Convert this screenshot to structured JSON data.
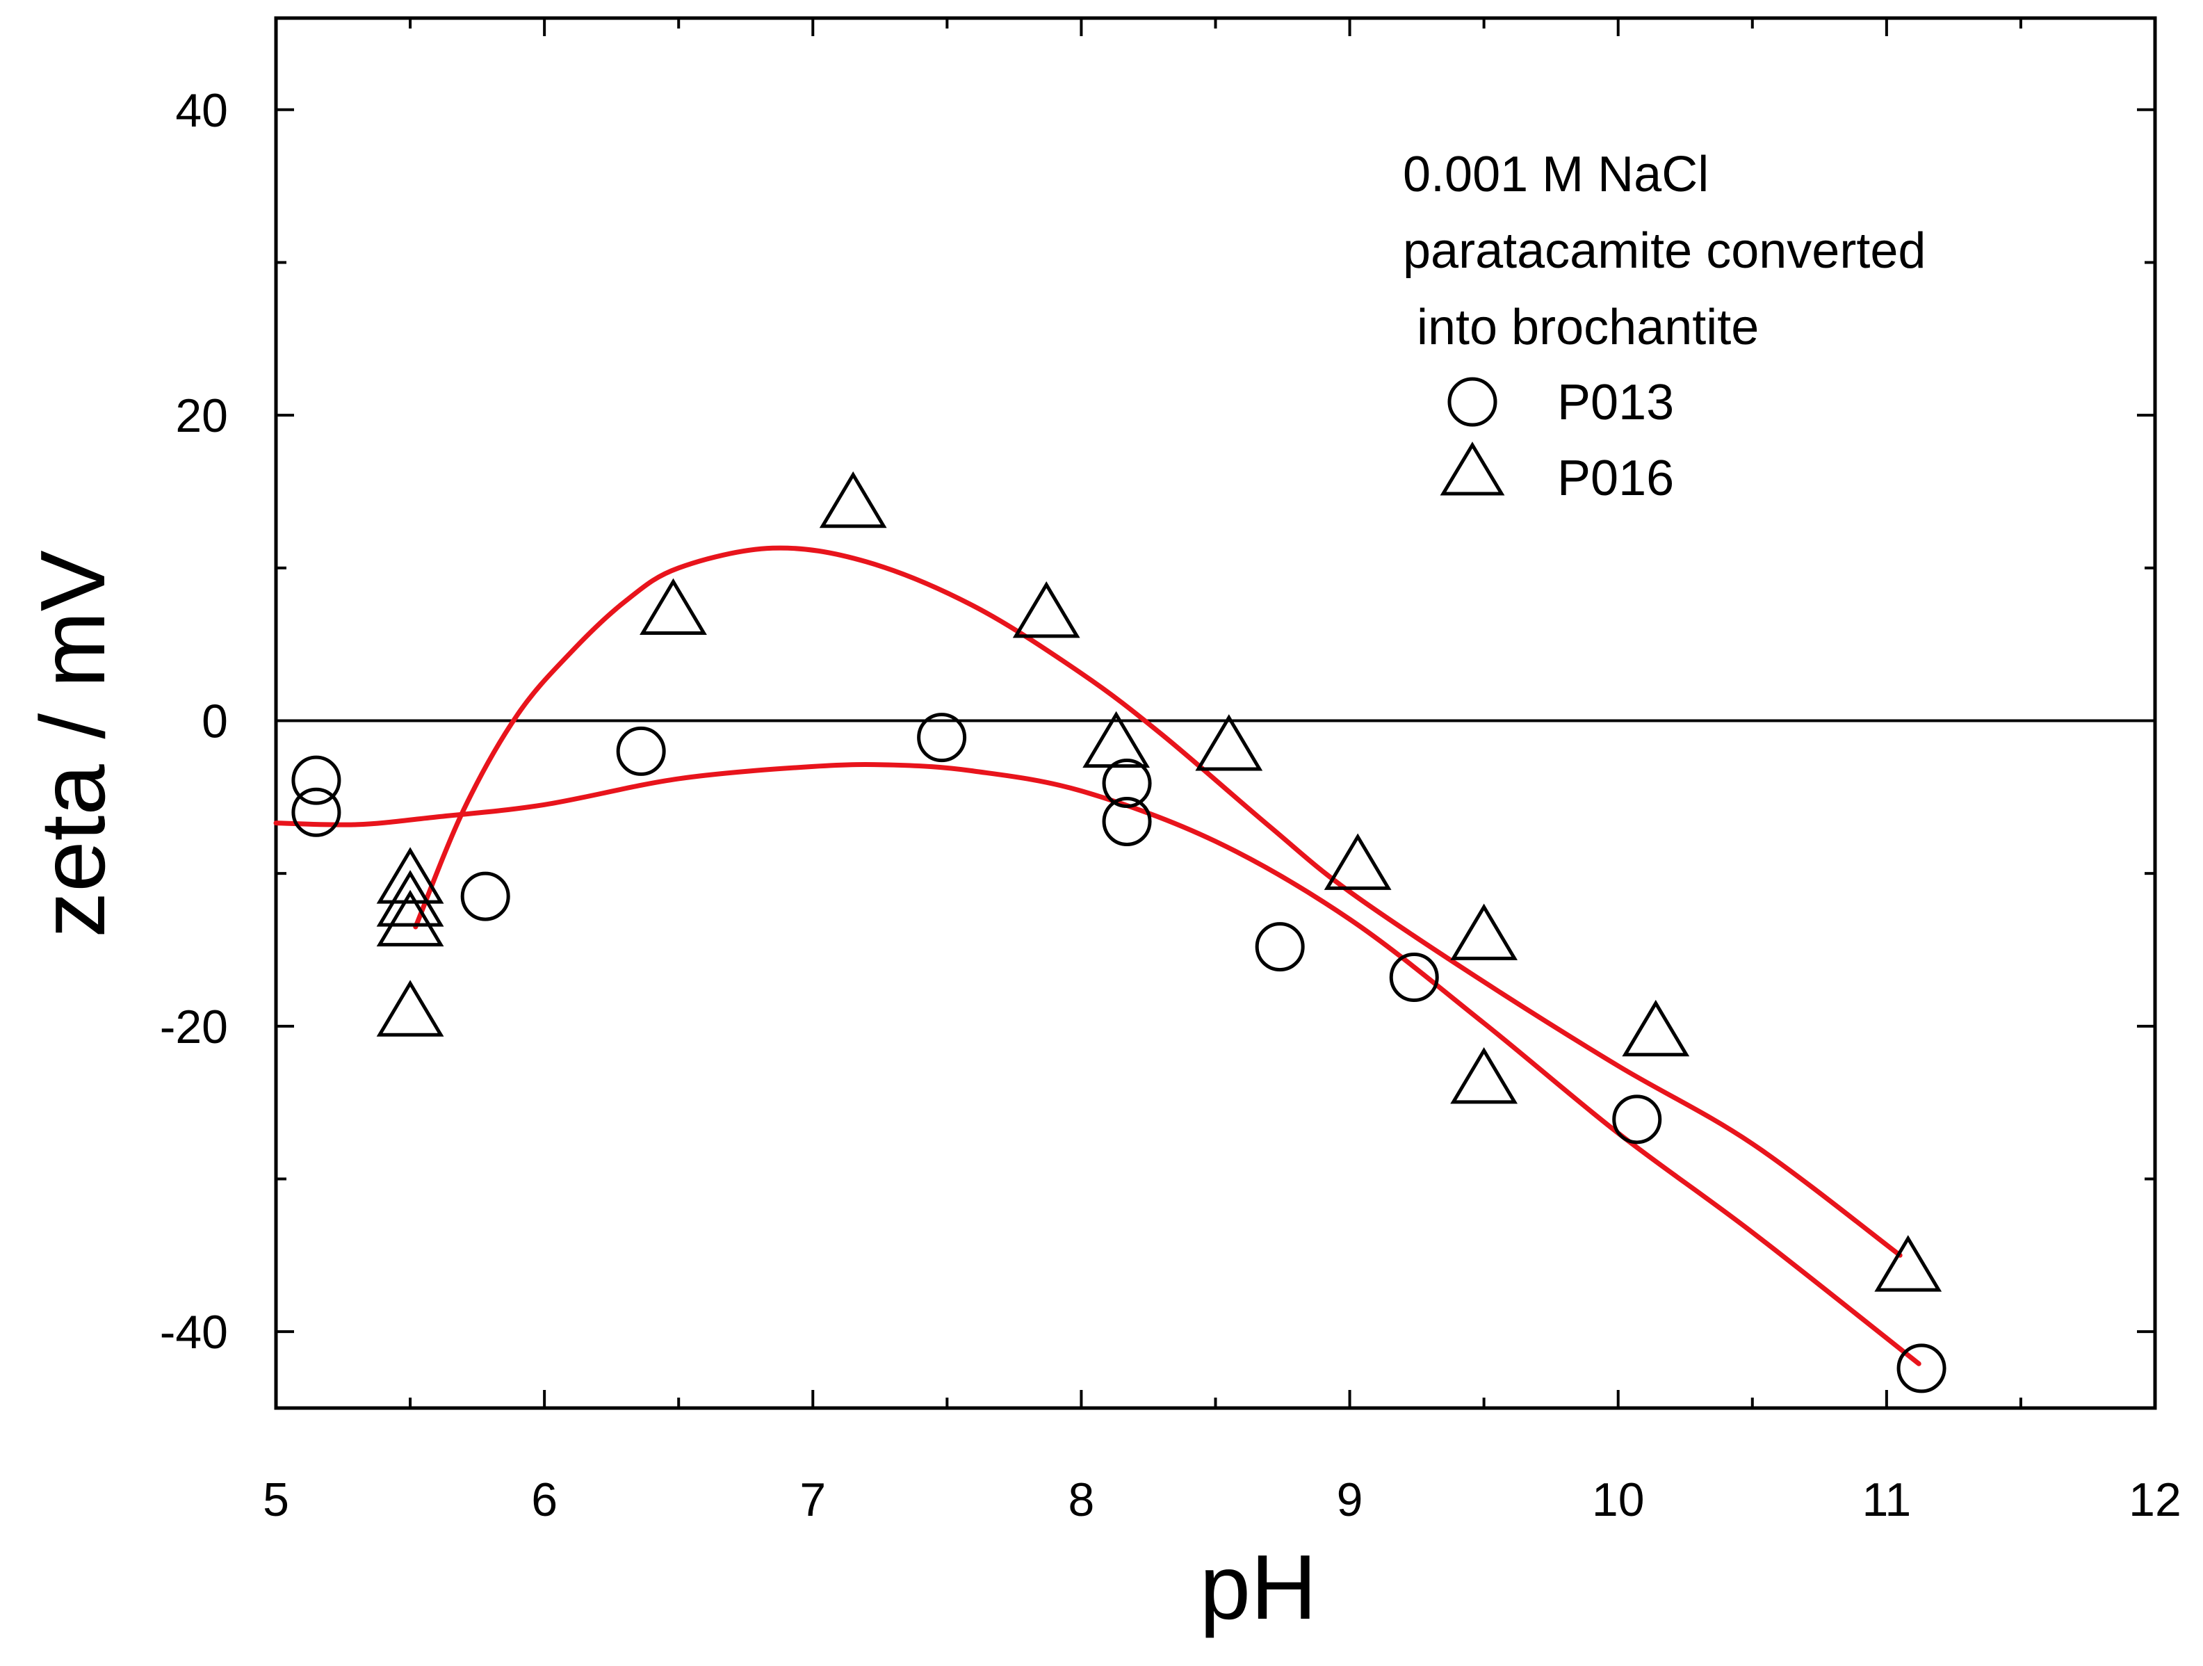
{
  "chart_data": {
    "type": "scatter",
    "title": "",
    "xlabel": "pH",
    "ylabel": "zeta / mV",
    "xlim": [
      5,
      12
    ],
    "ylim": [
      -45,
      46
    ],
    "x_ticks": [
      5,
      6,
      7,
      8,
      9,
      10,
      11,
      12
    ],
    "y_ticks": [
      40,
      20,
      0,
      -20,
      -40
    ],
    "x_tick_labels": [
      "5",
      "6",
      "7",
      "8",
      "9",
      "10",
      "11",
      "12"
    ],
    "y_tick_labels": [
      "40",
      "20",
      "0",
      "-20",
      "-40"
    ],
    "zero_line": true,
    "legend": {
      "placement": "top-right",
      "title_lines": [
        "0.001 M NaCl",
        "paratacamite converted",
        " into brochantite"
      ]
    },
    "series": [
      {
        "name": "P013",
        "marker": "circle",
        "points": [
          [
            5.15,
            -3.9
          ],
          [
            5.15,
            -6.0
          ],
          [
            5.78,
            -11.5
          ],
          [
            6.36,
            -2.0
          ],
          [
            7.48,
            -1.1
          ],
          [
            8.17,
            -4.1
          ],
          [
            8.17,
            -6.6
          ],
          [
            8.74,
            -14.8
          ],
          [
            9.24,
            -16.8
          ],
          [
            10.07,
            -26.1
          ],
          [
            11.13,
            -42.4
          ]
        ],
        "fit": [
          [
            5.0,
            -6.7
          ],
          [
            5.3,
            -6.8
          ],
          [
            5.6,
            -6.3
          ],
          [
            6.0,
            -5.5
          ],
          [
            6.5,
            -3.8
          ],
          [
            7.0,
            -3.0
          ],
          [
            7.3,
            -2.9
          ],
          [
            7.6,
            -3.3
          ],
          [
            8.0,
            -4.6
          ],
          [
            8.5,
            -7.9
          ],
          [
            9.0,
            -13.0
          ],
          [
            9.5,
            -19.8
          ],
          [
            10.0,
            -27.0
          ],
          [
            10.5,
            -33.5
          ],
          [
            11.12,
            -42.1
          ]
        ]
      },
      {
        "name": "P016",
        "marker": "triangle",
        "points": [
          [
            5.5,
            -10.5
          ],
          [
            5.5,
            -12.0
          ],
          [
            5.5,
            -13.3
          ],
          [
            5.5,
            -19.2
          ],
          [
            6.48,
            7.1
          ],
          [
            7.15,
            14.1
          ],
          [
            7.87,
            6.9
          ],
          [
            8.13,
            -1.6
          ],
          [
            8.55,
            -1.8
          ],
          [
            9.03,
            -9.6
          ],
          [
            9.5,
            -14.2
          ],
          [
            9.5,
            -23.6
          ],
          [
            10.14,
            -20.5
          ],
          [
            11.08,
            -35.9
          ]
        ],
        "fit": [
          [
            5.52,
            -13.5
          ],
          [
            5.7,
            -5.8
          ],
          [
            5.9,
            0.4
          ],
          [
            6.1,
            4.5
          ],
          [
            6.3,
            7.8
          ],
          [
            6.5,
            10.0
          ],
          [
            6.85,
            11.3
          ],
          [
            7.2,
            10.4
          ],
          [
            7.6,
            7.5
          ],
          [
            8.0,
            3.1
          ],
          [
            8.3,
            -0.9
          ],
          [
            8.7,
            -6.9
          ],
          [
            9.0,
            -11.2
          ],
          [
            9.5,
            -17.1
          ],
          [
            10.0,
            -22.6
          ],
          [
            10.5,
            -27.7
          ],
          [
            11.05,
            -35.0
          ]
        ]
      }
    ],
    "colors": {
      "fit_line": "#e8141c",
      "axis": "#000000",
      "marker_stroke": "#000000"
    }
  }
}
